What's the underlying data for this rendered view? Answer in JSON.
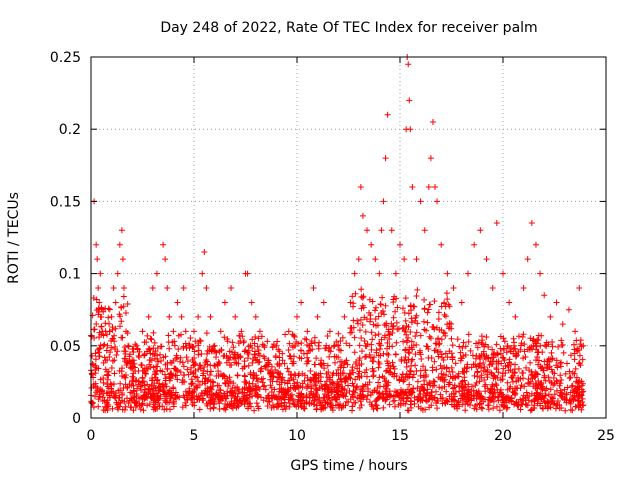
{
  "chart_data": {
    "type": "scatter",
    "title": "Day 248 of 2022, Rate Of TEC Index for receiver palm",
    "xlabel": "GPS time / hours",
    "ylabel": "ROTI / TECUs",
    "xlim": [
      0,
      25
    ],
    "ylim": [
      0,
      0.25
    ],
    "x_ticks": [
      0,
      5,
      10,
      15,
      20,
      25
    ],
    "x_tick_labels": [
      "0",
      "5",
      "10",
      "15",
      "20",
      "25"
    ],
    "y_ticks": [
      0,
      0.05,
      0.1,
      0.15,
      0.2,
      0.25
    ],
    "y_tick_labels": [
      "0",
      "0.05",
      "0.1",
      "0.15",
      "0.2",
      "0.25"
    ],
    "grid": true,
    "marker": "+",
    "color": "#ff0000",
    "series": [
      {
        "points_note_only_for_density": "",
        "x": [
          0.05,
          0.15,
          0.25,
          0.3,
          0.35,
          0.4,
          0.45,
          0.5,
          0.55,
          0.6,
          0.7,
          0.8,
          0.9,
          1.0,
          1.1,
          1.2,
          1.3,
          1.4,
          1.5,
          1.55,
          1.6,
          1.7,
          1.8,
          2.0,
          2.2,
          2.5,
          2.8,
          3.0,
          3.2,
          3.5,
          3.6,
          3.7,
          3.8,
          4.0,
          4.2,
          4.4,
          4.5,
          4.6,
          4.8,
          5.0,
          5.2,
          5.4,
          5.5,
          5.6,
          5.8,
          6.0,
          6.3,
          6.5,
          6.8,
          7.0,
          7.3,
          7.5,
          7.6,
          7.8,
          8.0,
          8.2,
          8.4,
          8.6,
          9.0,
          9.3,
          9.6,
          9.8,
          10.0,
          10.2,
          10.5,
          10.8,
          11.0,
          11.3,
          11.6,
          12.0,
          12.3,
          12.6,
          12.8,
          13.0,
          13.1,
          13.2,
          13.4,
          13.6,
          13.8,
          14.0,
          14.1,
          14.2,
          14.3,
          14.4,
          14.6,
          14.8,
          15.0,
          15.2,
          15.3,
          15.35,
          15.4,
          15.45,
          15.5,
          15.6,
          15.8,
          16.0,
          16.2,
          16.4,
          16.5,
          16.6,
          16.7,
          16.8,
          17.0,
          17.3,
          17.6,
          18.0,
          18.3,
          18.6,
          18.9,
          19.2,
          19.5,
          19.7,
          20.0,
          20.3,
          20.6,
          21.0,
          21.2,
          21.4,
          21.6,
          21.8,
          22.0,
          22.3,
          22.6,
          22.9,
          23.2,
          23.5,
          23.7,
          23.9
        ],
        "y": [
          0.03,
          0.15,
          0.12,
          0.11,
          0.09,
          0.08,
          0.1,
          0.07,
          0.06,
          0.05,
          0.04,
          0.05,
          0.06,
          0.07,
          0.09,
          0.08,
          0.1,
          0.12,
          0.13,
          0.11,
          0.09,
          0.06,
          0.05,
          0.04,
          0.05,
          0.06,
          0.07,
          0.09,
          0.1,
          0.12,
          0.11,
          0.09,
          0.07,
          0.06,
          0.08,
          0.07,
          0.09,
          0.06,
          0.05,
          0.06,
          0.07,
          0.1,
          0.115,
          0.09,
          0.07,
          0.05,
          0.06,
          0.08,
          0.09,
          0.07,
          0.06,
          0.1,
          0.1,
          0.08,
          0.07,
          0.06,
          0.05,
          0.04,
          0.05,
          0.04,
          0.06,
          0.05,
          0.07,
          0.08,
          0.06,
          0.09,
          0.07,
          0.08,
          0.06,
          0.05,
          0.07,
          0.08,
          0.1,
          0.11,
          0.16,
          0.14,
          0.13,
          0.12,
          0.11,
          0.1,
          0.13,
          0.15,
          0.18,
          0.21,
          0.13,
          0.1,
          0.12,
          0.11,
          0.2,
          0.25,
          0.245,
          0.22,
          0.2,
          0.16,
          0.11,
          0.15,
          0.13,
          0.16,
          0.18,
          0.205,
          0.16,
          0.15,
          0.12,
          0.1,
          0.09,
          0.08,
          0.1,
          0.12,
          0.13,
          0.11,
          0.09,
          0.135,
          0.1,
          0.08,
          0.07,
          0.09,
          0.11,
          0.135,
          0.12,
          0.1,
          0.085,
          0.07,
          0.08,
          0.065,
          0.075,
          0.06,
          0.09,
          0.05
        ]
      }
    ]
  }
}
